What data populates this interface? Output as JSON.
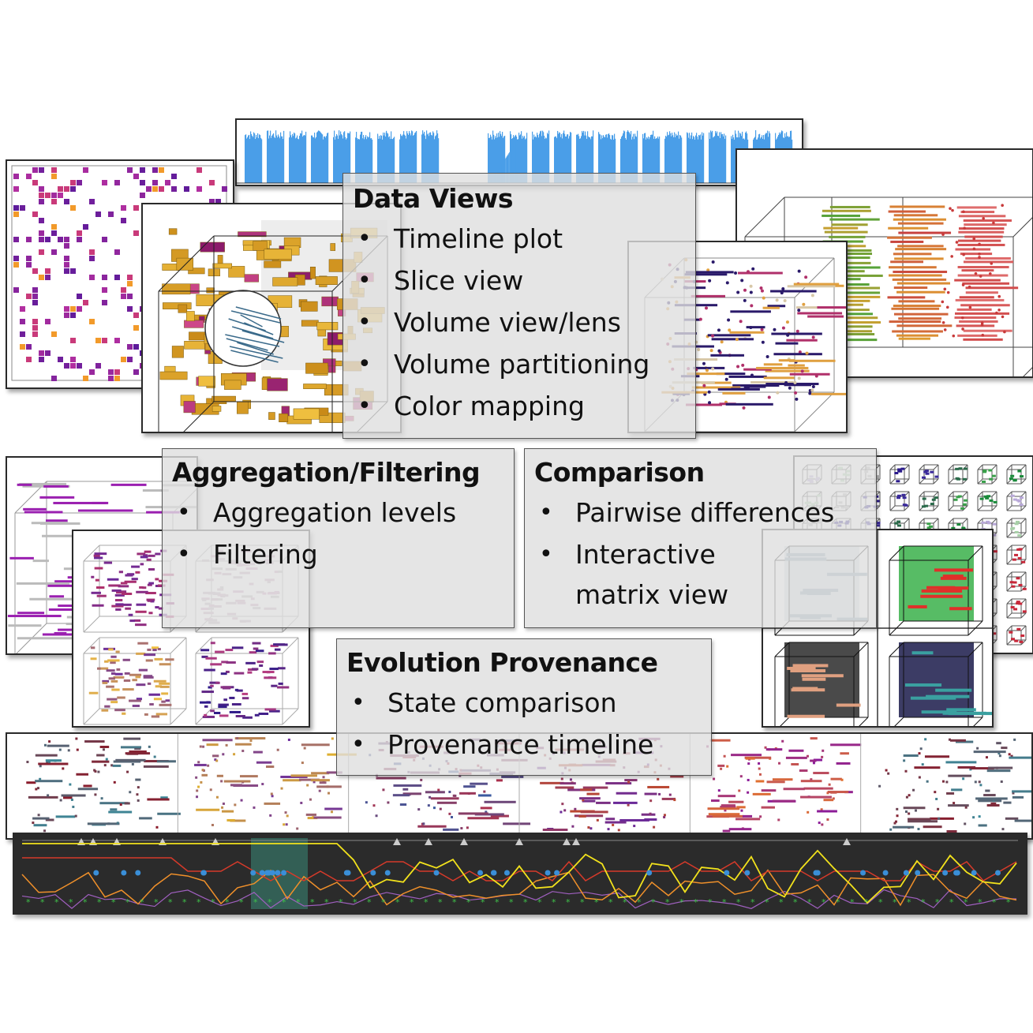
{
  "sections": [
    {
      "title": "Data Views",
      "items": [
        "Timeline plot",
        "Slice view",
        "Volume view/lens",
        "Volume partitioning",
        "Color mapping"
      ]
    },
    {
      "title": "Aggregation/Filtering",
      "items": [
        "Aggregation levels",
        "Filtering"
      ]
    },
    {
      "title": "Comparison",
      "items": [
        "Pairwise differences",
        "Interactive",
        "matrix view"
      ]
    },
    {
      "title": "Evolution Provenance",
      "items": [
        "State comparison",
        "Provenance timeline"
      ]
    }
  ],
  "bullet": "•",
  "colors": {
    "timeline_blue": "#4a9ee8",
    "slice_purple": "#7a1fa8",
    "volume_gold": "#d9a520",
    "provenance_bg": "#2b2b2b",
    "provenance_yellow": "#f2e21c",
    "provenance_red": "#d63a2a",
    "provenance_orange": "#f0902a",
    "provenance_green": "#3fc24a",
    "provenance_blue": "#3a8fd8"
  }
}
